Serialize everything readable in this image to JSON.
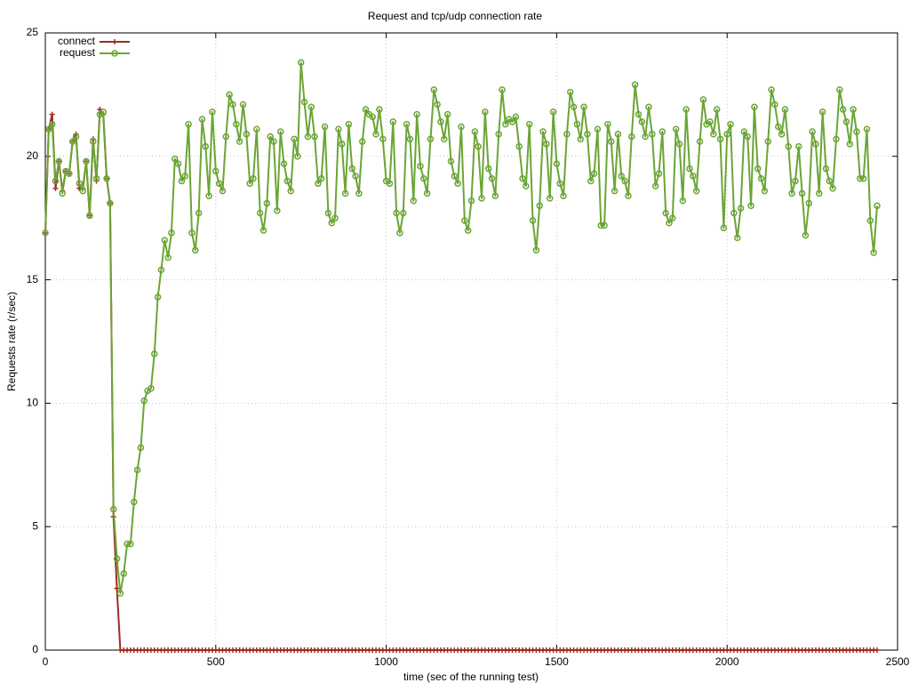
{
  "chart_data": {
    "type": "line",
    "title": "Request and tcp/udp connection rate",
    "xlabel": "time (sec of the running test)",
    "ylabel": "Requests rate (r/sec)",
    "xlim": [
      0,
      2500
    ],
    "ylim": [
      0,
      25
    ],
    "xticks": [
      0,
      500,
      1000,
      1500,
      2000,
      2500
    ],
    "yticks": [
      0,
      5,
      10,
      15,
      20,
      25
    ],
    "grid": true,
    "legend": "top-left",
    "x": [
      0,
      10,
      20,
      30,
      40,
      50,
      60,
      70,
      80,
      90,
      100,
      110,
      120,
      130,
      140,
      150,
      160,
      170,
      180,
      190,
      200,
      210,
      220,
      230,
      240,
      250,
      260,
      270,
      280,
      290,
      300,
      310,
      320,
      330,
      340,
      350,
      360,
      370,
      380,
      390,
      400,
      410,
      420,
      430,
      440,
      450,
      460,
      470,
      480,
      490,
      500,
      510,
      520,
      530,
      540,
      550,
      560,
      570,
      580,
      590,
      600,
      610,
      620,
      630,
      640,
      650,
      660,
      670,
      680,
      690,
      700,
      710,
      720,
      730,
      740,
      750,
      760,
      770,
      780,
      790,
      800,
      810,
      820,
      830,
      840,
      850,
      860,
      870,
      880,
      890,
      900,
      910,
      920,
      930,
      940,
      950,
      960,
      970,
      980,
      990,
      1000,
      1010,
      1020,
      1030,
      1040,
      1050,
      1060,
      1070,
      1080,
      1090,
      1100,
      1110,
      1120,
      1130,
      1140,
      1150,
      1160,
      1170,
      1180,
      1190,
      1200,
      1210,
      1220,
      1230,
      1240,
      1250,
      1260,
      1270,
      1280,
      1290,
      1300,
      1310,
      1320,
      1330,
      1340,
      1350,
      1360,
      1370,
      1380,
      1390,
      1400,
      1410,
      1420,
      1430,
      1440,
      1450,
      1460,
      1470,
      1480,
      1490,
      1500,
      1510,
      1520,
      1530,
      1540,
      1550,
      1560,
      1570,
      1580,
      1590,
      1600,
      1610,
      1620,
      1630,
      1640,
      1650,
      1660,
      1670,
      1680,
      1690,
      1700,
      1710,
      1720,
      1730,
      1740,
      1750,
      1760,
      1770,
      1780,
      1790,
      1800,
      1810,
      1820,
      1830,
      1840,
      1850,
      1860,
      1870,
      1880,
      1890,
      1900,
      1910,
      1920,
      1930,
      1940,
      1950,
      1960,
      1970,
      1980,
      1990,
      2000,
      2010,
      2020,
      2030,
      2040,
      2050,
      2060,
      2070,
      2080,
      2090,
      2100,
      2110,
      2120,
      2130,
      2140,
      2150,
      2160,
      2170,
      2180,
      2190,
      2200,
      2210,
      2220,
      2230,
      2240,
      2250,
      2260,
      2270,
      2280,
      2290,
      2300,
      2310,
      2320,
      2330,
      2340,
      2350,
      2360,
      2370,
      2380,
      2390,
      2400,
      2410,
      2420,
      2430,
      2440
    ],
    "series": [
      {
        "name": "connect",
        "color": "#a02a22",
        "marker": "plus",
        "values": [
          16.9,
          21.1,
          21.7,
          18.7,
          19.8,
          18.6,
          19.4,
          19.3,
          20.6,
          20.9,
          18.7,
          18.7,
          19.8,
          17.6,
          20.7,
          19.0,
          21.9,
          21.7,
          19.1,
          18.1,
          5.4,
          2.5,
          0,
          0,
          0,
          0,
          0,
          0,
          0,
          0,
          0,
          0,
          0,
          0,
          0,
          0,
          0,
          0,
          0,
          0,
          0,
          0,
          0,
          0,
          0,
          0,
          0,
          0,
          0,
          0,
          0,
          0,
          0,
          0,
          0,
          0,
          0,
          0,
          0,
          0,
          0,
          0,
          0,
          0,
          0,
          0,
          0,
          0,
          0,
          0,
          0,
          0,
          0,
          0,
          0,
          0,
          0,
          0,
          0,
          0,
          0,
          0,
          0,
          0,
          0,
          0,
          0,
          0,
          0,
          0,
          0,
          0,
          0,
          0,
          0,
          0,
          0,
          0,
          0,
          0,
          0,
          0,
          0,
          0,
          0,
          0,
          0,
          0,
          0,
          0,
          0,
          0,
          0,
          0,
          0,
          0,
          0,
          0,
          0,
          0,
          0,
          0,
          0,
          0,
          0,
          0,
          0,
          0,
          0,
          0,
          0,
          0,
          0,
          0,
          0,
          0,
          0,
          0,
          0,
          0,
          0,
          0,
          0,
          0,
          0,
          0,
          0,
          0,
          0,
          0,
          0,
          0,
          0,
          0,
          0,
          0,
          0,
          0,
          0,
          0,
          0,
          0,
          0,
          0,
          0,
          0,
          0,
          0,
          0,
          0,
          0,
          0,
          0,
          0,
          0,
          0,
          0,
          0,
          0,
          0,
          0,
          0,
          0,
          0,
          0,
          0,
          0,
          0,
          0,
          0,
          0,
          0,
          0,
          0,
          0,
          0,
          0,
          0,
          0,
          0,
          0,
          0,
          0,
          0,
          0,
          0,
          0,
          0,
          0,
          0,
          0,
          0,
          0,
          0,
          0,
          0,
          0,
          0,
          0,
          0,
          0,
          0,
          0,
          0,
          0,
          0,
          0,
          0,
          0,
          0,
          0,
          0,
          0,
          0,
          0,
          0,
          0,
          0,
          0,
          0,
          0,
          0,
          0,
          0,
          0
        ]
      },
      {
        "name": "request",
        "color": "#6aa535",
        "marker": "circle",
        "values": [
          16.9,
          21.1,
          21.3,
          19.0,
          19.8,
          18.5,
          19.4,
          19.3,
          20.6,
          20.8,
          18.9,
          18.6,
          19.8,
          17.6,
          20.6,
          19.1,
          21.7,
          21.8,
          19.1,
          18.1,
          5.7,
          3.7,
          2.3,
          3.1,
          4.3,
          4.3,
          6.0,
          7.3,
          8.2,
          10.1,
          10.5,
          10.6,
          12.0,
          14.3,
          15.4,
          16.6,
          15.9,
          16.9,
          19.9,
          19.7,
          19.0,
          19.2,
          21.3,
          16.9,
          16.2,
          17.7,
          21.5,
          20.4,
          18.4,
          21.8,
          19.4,
          18.9,
          18.6,
          20.8,
          22.5,
          22.1,
          21.3,
          20.6,
          22.1,
          20.9,
          18.9,
          19.1,
          21.1,
          17.7,
          17.0,
          18.1,
          20.8,
          20.6,
          17.8,
          21.0,
          19.7,
          19.0,
          18.6,
          20.7,
          20.0,
          23.8,
          22.2,
          20.8,
          22.0,
          20.8,
          18.9,
          19.1,
          21.2,
          17.7,
          17.3,
          17.5,
          21.1,
          20.5,
          18.5,
          21.3,
          19.5,
          19.2,
          18.5,
          20.6,
          21.9,
          21.7,
          21.6,
          20.9,
          21.9,
          20.7,
          19.0,
          18.9,
          21.4,
          17.7,
          16.9,
          17.7,
          21.3,
          20.7,
          18.2,
          21.7,
          19.6,
          19.1,
          18.5,
          20.7,
          22.7,
          22.1,
          21.4,
          20.7,
          21.7,
          19.8,
          19.2,
          18.9,
          21.2,
          17.4,
          17.0,
          18.2,
          21.0,
          20.4,
          18.3,
          21.8,
          19.5,
          19.1,
          18.4,
          20.9,
          22.7,
          21.3,
          21.5,
          21.4,
          21.6,
          20.4,
          19.1,
          18.8,
          21.3,
          17.4,
          16.2,
          18.0,
          21.0,
          20.5,
          18.3,
          21.8,
          19.7,
          18.9,
          18.4,
          20.9,
          22.6,
          22.0,
          21.3,
          20.7,
          22.0,
          20.9,
          19.0,
          19.3,
          21.1,
          17.2,
          17.2,
          21.3,
          20.6,
          18.6,
          20.9,
          19.2,
          19.0,
          18.4,
          20.8,
          22.9,
          21.7,
          21.4,
          20.8,
          22.0,
          20.9,
          18.8,
          19.3,
          21.0,
          17.7,
          17.3,
          17.5,
          21.1,
          20.5,
          18.2,
          21.9,
          19.5,
          19.2,
          18.6,
          20.6,
          22.3,
          21.3,
          21.4,
          20.9,
          21.9,
          20.7,
          17.1,
          20.9,
          21.3,
          17.7,
          16.7,
          17.9,
          21.0,
          20.8,
          18.0,
          22.0,
          19.5,
          19.1,
          18.6,
          20.6,
          22.7,
          22.1,
          21.2,
          20.9,
          21.9,
          20.4,
          18.5,
          19.0,
          20.4,
          18.5,
          16.8,
          18.1,
          21.0,
          20.5,
          18.5,
          21.8,
          19.5,
          19.0,
          18.7,
          20.7,
          22.7,
          21.9,
          21.4,
          20.5,
          21.9,
          21.0,
          19.1,
          19.1,
          21.1,
          17.4,
          16.1,
          18.0
        ]
      }
    ]
  }
}
